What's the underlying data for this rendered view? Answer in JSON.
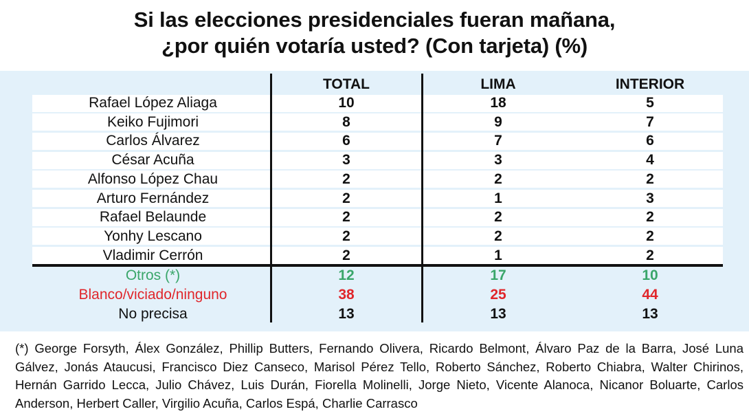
{
  "title_line1": "Si las elecciones presidenciales fueran mañana,",
  "title_line2": "¿por quién votaría usted? (Con tarjeta) (%)",
  "colors": {
    "panel_bg": "#e3f1fa",
    "otros": "#3aa66a",
    "blanco": "#e0262b",
    "text": "#111111"
  },
  "chart_data": {
    "type": "table",
    "columns": [
      "TOTAL",
      "LIMA",
      "INTERIOR"
    ],
    "rows": [
      {
        "label": "Rafael López Aliaga",
        "values": [
          "10",
          "18",
          "5"
        ]
      },
      {
        "label": "Keiko Fujimori",
        "values": [
          "8",
          "9",
          "7"
        ]
      },
      {
        "label": "Carlos Álvarez",
        "values": [
          "6",
          "7",
          "6"
        ]
      },
      {
        "label": "César Acuña",
        "values": [
          "3",
          "3",
          "4"
        ]
      },
      {
        "label": "Alfonso López Chau",
        "values": [
          "2",
          "2",
          "2"
        ]
      },
      {
        "label": "Arturo Fernández",
        "values": [
          "2",
          "1",
          "3"
        ]
      },
      {
        "label": "Rafael Belaunde",
        "values": [
          "2",
          "2",
          "2"
        ]
      },
      {
        "label": "Yonhy Lescano",
        "values": [
          "2",
          "2",
          "2"
        ]
      },
      {
        "label": "Vladimir Cerrón",
        "values": [
          "2",
          "1",
          "2"
        ]
      },
      {
        "label": "Otros (*)",
        "values": [
          "12",
          "17",
          "10"
        ]
      },
      {
        "label": "Blanco/viciado/ninguno",
        "values": [
          "38",
          "25",
          "44"
        ]
      },
      {
        "label": "No precisa",
        "values": [
          "13",
          "13",
          "13"
        ]
      }
    ]
  },
  "footnote": "(*) George Forsyth, Álex González, Phillip Butters, Fernando Olivera, Ricardo Belmont, Álvaro Paz de la Barra, José Luna Gálvez, Jonás Ataucusi, Francisco Diez Canseco, Marisol Pérez Tello, Roberto Sánchez, Roberto Chiabra, Walter Chirinos, Hernán Garrido Lecca, Julio Chávez, Luis Durán, Fiorella Molinelli, Jorge Nieto, Vicente Alanoca, Nicanor Boluarte, Carlos Anderson, Herbert Caller, Virgilio Acuña, Carlos Espá, Charlie Carrasco"
}
